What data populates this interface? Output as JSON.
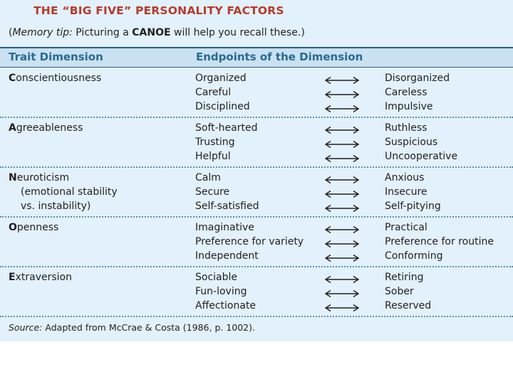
{
  "title": "THE “BIG FIVE” PERSONALITY FACTORS",
  "memory_tip": {
    "open_paren": "(",
    "label": "Memory tip:",
    "text_before": " Picturing a ",
    "keyword": "CANOE",
    "text_after": " will help you recall these.)"
  },
  "headers": {
    "trait": "Trait Dimension",
    "endpoints": "Endpoints of the Dimension"
  },
  "factors": [
    {
      "initial": "C",
      "rest": "onscientiousness",
      "sub": [],
      "pairs": [
        [
          "Organized",
          "Disorganized"
        ],
        [
          "Careful",
          "Careless"
        ],
        [
          "Disciplined",
          "Impulsive"
        ]
      ]
    },
    {
      "initial": "A",
      "rest": "greeableness",
      "sub": [],
      "pairs": [
        [
          "Soft-hearted",
          "Ruthless"
        ],
        [
          "Trusting",
          "Suspicious"
        ],
        [
          "Helpful",
          "Uncooperative"
        ]
      ]
    },
    {
      "initial": "N",
      "rest": "euroticism",
      "sub": [
        "(emotional stability",
        "vs. instability)"
      ],
      "pairs": [
        [
          "Calm",
          "Anxious"
        ],
        [
          "Secure",
          "Insecure"
        ],
        [
          "Self-satisfied",
          "Self-pitying"
        ]
      ]
    },
    {
      "initial": "O",
      "rest": "penness",
      "sub": [],
      "pairs": [
        [
          "Imaginative",
          "Practical"
        ],
        [
          "Preference for variety",
          "Preference for routine"
        ],
        [
          "Independent",
          "Conforming"
        ]
      ]
    },
    {
      "initial": "E",
      "rest": "xtraversion",
      "sub": [],
      "pairs": [
        [
          "Sociable",
          "Retiring"
        ],
        [
          "Fun-loving",
          "Sober"
        ],
        [
          "Affectionate",
          "Reserved"
        ]
      ]
    }
  ],
  "source": {
    "label": "Source:",
    "text": " Adapted from McCrae & Costa (1986, p. 1002)."
  },
  "colors": {
    "title": "#b73a2a",
    "header_text": "#2a6a91",
    "background": "#e2f1fb",
    "header_band": "#c9e1f1"
  }
}
